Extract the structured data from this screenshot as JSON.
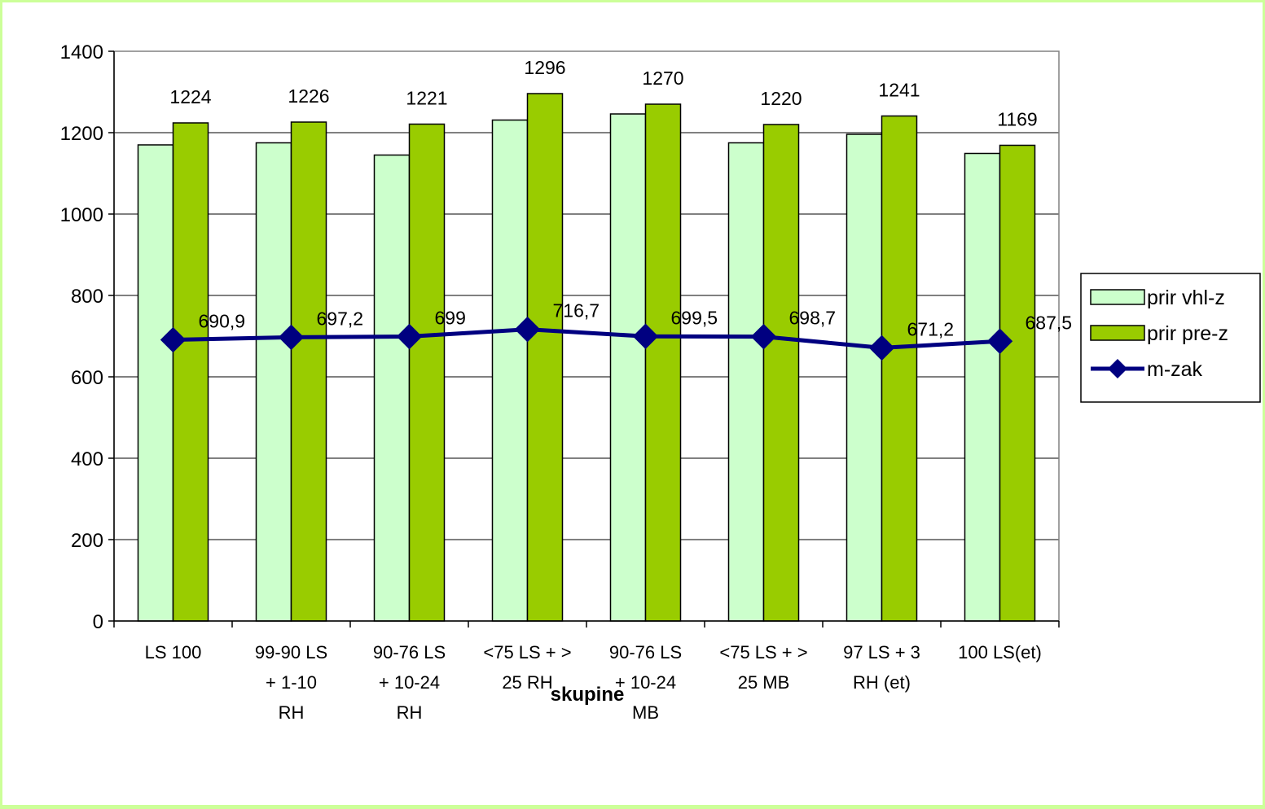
{
  "chart_data": {
    "type": "bar",
    "title": "",
    "xlabel": "skupine",
    "ylabel": "",
    "ylim": [
      0,
      1400
    ],
    "yticks": [
      "0",
      "200",
      "400",
      "600",
      "800",
      "1000",
      "1200",
      "1400"
    ],
    "ytick_values": [
      0,
      200,
      400,
      600,
      800,
      1000,
      1200,
      1400
    ],
    "categories": [
      [
        "LS 100"
      ],
      [
        "99-90 LS",
        "+   1-10",
        "RH"
      ],
      [
        "90-76 LS",
        "+ 10-24",
        "RH"
      ],
      [
        "<75 LS + >",
        "25 RH"
      ],
      [
        "90-76 LS",
        "+ 10-24",
        "MB"
      ],
      [
        "<75 LS + >",
        "25 MB"
      ],
      [
        "97 LS + 3",
        "RH (et)"
      ],
      [
        "100 LS(et)"
      ]
    ],
    "grid": "horizontal",
    "legend_position": "right",
    "series": [
      {
        "name": "prir vhl-z",
        "kind": "bar",
        "color": "#CCFFCC",
        "values": [
          1170,
          1175,
          1145,
          1231,
          1246,
          1175,
          1196,
          1149
        ],
        "labels": []
      },
      {
        "name": "prir pre-z",
        "kind": "bar",
        "color": "#99CC00",
        "values": [
          1224,
          1226,
          1221,
          1296,
          1270,
          1220,
          1241,
          1169
        ],
        "labels": [
          "1224",
          "1226",
          "1221",
          "1296",
          "1270",
          "1220",
          "1241",
          "1169"
        ]
      },
      {
        "name": "m-zak",
        "kind": "line",
        "color": "#000080",
        "values": [
          690.9,
          697.2,
          699,
          716.7,
          699.5,
          698.7,
          671.2,
          687.5
        ],
        "labels": [
          "690,9",
          "697,2",
          "699",
          "716,7",
          "699,5",
          "698,7",
          "671,2",
          "687,5"
        ]
      }
    ]
  }
}
